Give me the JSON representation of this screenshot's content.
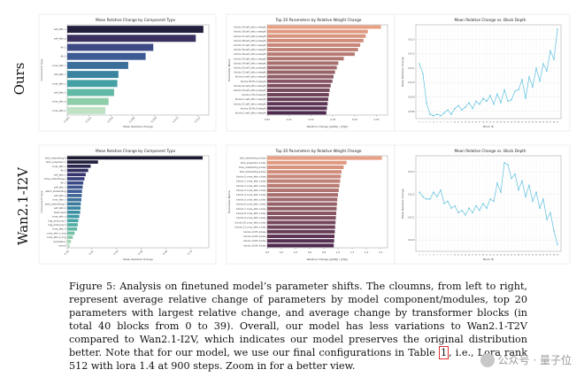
{
  "row_labels": [
    "Ours",
    "Wan2.1-I2V"
  ],
  "chart_data": [
    {
      "type": "bar",
      "orientation": "horizontal",
      "row": 0,
      "col": 0,
      "title": "Mean Relative Change by Component Type",
      "xlabel": "Mean Relative Change",
      "ylabel": "Component Type",
      "categories": [
        "self_attn.o",
        "self_attn.q",
        "ffn.2",
        "ffn.0",
        "cross_attn.v",
        "self_attn.v",
        "cross_attn.o",
        "self_attn.k",
        "cross_attn.q",
        "cross_attn.k"
      ],
      "values": [
        0.0125,
        0.0118,
        0.0079,
        0.0072,
        0.0056,
        0.0047,
        0.0046,
        0.0043,
        0.0038,
        0.0035
      ],
      "xlim": [
        0,
        0.013
      ],
      "xticks": [
        "0.000",
        "0.002",
        "0.004",
        "0.006",
        "0.008",
        "0.010",
        "0.012"
      ],
      "palette": [
        "#23203e",
        "#3a2f5e",
        "#3d4a86",
        "#3e5c93",
        "#3a6f9a",
        "#3a849f",
        "#43a0a3",
        "#61b8a4",
        "#8fcdaa",
        "#bfe2c4"
      ]
    },
    {
      "type": "bar",
      "orientation": "horizontal",
      "row": 0,
      "col": 1,
      "title": "Top 20 Parameters by Relative Weight Change",
      "xlabel": "Relative Change (||ΔW|| / ||W||)",
      "ylabel": "Parameter Name",
      "categories": [
        "blocks.39.self_attn.o.weight",
        "blocks.38.self_attn.o.weight",
        "blocks.37.self_attn.q.weight",
        "blocks.38.self_attn.q.weight",
        "blocks.37.self_attn.o.weight",
        "blocks.36.self_attn.o.weight",
        "blocks.36.self_attn.q.weight",
        "blocks.35.self_attn.o.weight",
        "blocks.34.self_attn.o.weight",
        "blocks.35.self_attn.q.weight",
        "blocks.33.self_attn.o.weight",
        "blocks.0.self_attn.o.weight",
        "blocks.39.ffn.2.weight",
        "blocks.32.self_attn.o.weight",
        "blocks.34.self_attn.q.weight",
        "blocks.1.ffn.0.weight",
        "blocks.1.self_attn.o.weight",
        "blocks.31.self_attn.o.weight",
        "blocks.39.ffn.0.weight",
        "blocks.2.self_attn.o.weight"
      ],
      "values": [
        0.052,
        0.046,
        0.045,
        0.044,
        0.0425,
        0.0415,
        0.04,
        0.035,
        0.0325,
        0.0318,
        0.031,
        0.0303,
        0.0298,
        0.029,
        0.0285,
        0.0282,
        0.0279,
        0.0276,
        0.0273,
        0.027
      ],
      "xlim": [
        0,
        0.055
      ],
      "xticks": [
        "0.00",
        "0.01",
        "0.02",
        "0.03",
        "0.04",
        "0.05"
      ],
      "palette_start": "#e8a084",
      "palette_end": "#4f2a4f"
    },
    {
      "type": "line",
      "row": 0,
      "col": 2,
      "title": "Mean Relative Change vs. Block Depth",
      "xlabel": "Block ID",
      "ylabel": "Mean Relative Change",
      "x": [
        0,
        1,
        2,
        3,
        4,
        5,
        6,
        7,
        8,
        9,
        10,
        11,
        12,
        13,
        14,
        15,
        16,
        17,
        18,
        19,
        20,
        21,
        22,
        23,
        24,
        25,
        26,
        27,
        28,
        29,
        30,
        31,
        32,
        33,
        34,
        35,
        36,
        37,
        38,
        39
      ],
      "y": [
        0.0113,
        0.0106,
        0.0086,
        0.0078,
        0.0077,
        0.0078,
        0.0077,
        0.0079,
        0.0081,
        0.0078,
        0.0082,
        0.0084,
        0.0081,
        0.0083,
        0.0086,
        0.0082,
        0.0087,
        0.0085,
        0.0089,
        0.0087,
        0.0091,
        0.0085,
        0.0092,
        0.0086,
        0.0095,
        0.0087,
        0.0088,
        0.0094,
        0.0095,
        0.0102,
        0.0089,
        0.0104,
        0.0097,
        0.011,
        0.0101,
        0.0113,
        0.0108,
        0.0122,
        0.0116,
        0.0137
      ],
      "ylim": [
        0.0075,
        0.014
      ],
      "yticks": [
        "0.008",
        "0.009",
        "0.010",
        "0.011",
        "0.012",
        "0.013"
      ],
      "color": "#5bc0de",
      "grid": true
    },
    {
      "type": "bar",
      "orientation": "horizontal",
      "row": 1,
      "col": 0,
      "title": "Mean Relative Change by Component Type",
      "xlabel": "Mean Relative Change",
      "ylabel": "Component Type",
      "categories": [
        "text_embedding.0",
        "time_projection.1",
        "cross_attn.o",
        "ffn.0",
        "self_attn.o",
        "time_embedding.2",
        "ffn.2",
        "self_attn.v",
        "patch_embedding",
        "self_attn.q",
        "cross_attn.v",
        "text_embedding.2",
        "self_attn.k",
        "head.head",
        "cross_attn.q",
        "img_emb.proj.1",
        "img_emb.proj.3",
        "cross_attn.k",
        "cross_attn.v_img",
        "cross_attn.k_img",
        "modulation",
        "norm3"
      ],
      "values": [
        0.11,
        0.025,
        0.019,
        0.017,
        0.015,
        0.014,
        0.013,
        0.0125,
        0.012,
        0.0118,
        0.0115,
        0.011,
        0.0108,
        0.0105,
        0.0098,
        0.009,
        0.0085,
        0.008,
        0.006,
        0.0045,
        0.003,
        0.002
      ],
      "xlim": [
        0,
        0.115
      ],
      "xticks": [
        "0.00",
        "0.02",
        "0.04",
        "0.06",
        "0.08",
        "0.10"
      ],
      "palette": [
        "#1b1a33",
        "#23203e",
        "#2a2650",
        "#302d5f",
        "#36356e",
        "#383f7b",
        "#3b4a86",
        "#3d548f",
        "#3e5e95",
        "#3e6798",
        "#3c719b",
        "#3a7b9e",
        "#3a85a0",
        "#3c8fa2",
        "#3f99a3",
        "#47a3a4",
        "#52ada4",
        "#62b7a5",
        "#76c0a7",
        "#8ccaab",
        "#a4d5b4",
        "#bfe2c4"
      ]
    },
    {
      "type": "bar",
      "orientation": "horizontal",
      "row": 1,
      "col": 1,
      "title": "Top 20 Parameters by Relative Weight Change",
      "xlabel": "Relative Change (||ΔW|| / ||W||)",
      "ylabel": "Parameter Name",
      "categories": [
        "text_embedding.0.bias",
        "time_projection.1.bias",
        "time_embedding.2.bias",
        "text_embedding.2.bias",
        "blocks.0.cross_attn.o.bias",
        "blocks.1.cross_attn.o.bias",
        "blocks.2.cross_attn.o.bias",
        "blocks.3.cross_attn.o.bias",
        "blocks.4.cross_attn.o.bias",
        "blocks.5.cross_attn.o.bias",
        "blocks.6.cross_attn.o.bias",
        "blocks.7.cross_attn.o.bias",
        "blocks.8.cross_attn.o.bias",
        "blocks.9.cross_attn.o.bias",
        "blocks.10.cross_attn.o.bias",
        "blocks.11.cross_attn.o.bias",
        "blocks.12.ffn.0.bias",
        "blocks.13.ffn.0.bias",
        "blocks.14.ffn.0.bias",
        "blocks.15.ffn.0.bias"
      ],
      "values": [
        1.62,
        1.12,
        1.08,
        1.05,
        1.04,
        1.03,
        1.02,
        1.01,
        1.0,
        0.99,
        0.985,
        0.98,
        0.975,
        0.97,
        0.965,
        0.96,
        0.955,
        0.95,
        0.945,
        0.94
      ],
      "xlim": [
        0,
        1.7
      ],
      "xticks": [
        "0.0",
        "0.2",
        "0.4",
        "0.6",
        "0.8",
        "1.0",
        "1.2",
        "1.4",
        "1.6"
      ],
      "palette_start": "#e8a084",
      "palette_end": "#4f2a4f"
    },
    {
      "type": "line",
      "row": 1,
      "col": 2,
      "title": "Mean Relative Change vs. Block Depth",
      "xlabel": "Block ID",
      "ylabel": "Mean Relative Change",
      "x": [
        0,
        1,
        2,
        3,
        4,
        5,
        6,
        7,
        8,
        9,
        10,
        11,
        12,
        13,
        14,
        15,
        16,
        17,
        18,
        19,
        20,
        21,
        22,
        23,
        24,
        25,
        26,
        27,
        28,
        29,
        30,
        31,
        32,
        33,
        34,
        35,
        36,
        37,
        38,
        39
      ],
      "y": [
        0.0121,
        0.0119,
        0.0118,
        0.0118,
        0.0121,
        0.0119,
        0.0122,
        0.0116,
        0.0117,
        0.0114,
        0.0115,
        0.0112,
        0.0113,
        0.0111,
        0.0114,
        0.0112,
        0.0115,
        0.0113,
        0.0116,
        0.0114,
        0.0118,
        0.0117,
        0.0125,
        0.0121,
        0.0134,
        0.0133,
        0.0127,
        0.0129,
        0.0122,
        0.0126,
        0.0119,
        0.0124,
        0.0117,
        0.0121,
        0.0114,
        0.0118,
        0.0109,
        0.0112,
        0.0104,
        0.0098
      ],
      "ylim": [
        0.0095,
        0.0137
      ],
      "yticks": [
        "0.010",
        "0.011",
        "0.012",
        "0.013"
      ],
      "color": "#5bc0de",
      "grid": true
    }
  ],
  "caption": {
    "line1": "Figure 5: Analysis on finetuned model’s parameter shifts. The cloumns, from left to right, represent average relative change of parameters by model component/modules, top 20 parameters with largest relative change, and average change by transformer blocks (in total 40 blocks from 0 to 39). Overall, our model has less variations to Wan2.1-T2V compared to Wan2.1-I2V, which indicates our model preserves the original distribution better. Note that for our model, we use our final configurations in Table ",
    "table_ref": "1",
    "line2": ", i.e., Lora rank 512 with lora 1.4 at 900 steps. Zoom in for a better view."
  },
  "watermark": "公众号 · 量子位"
}
